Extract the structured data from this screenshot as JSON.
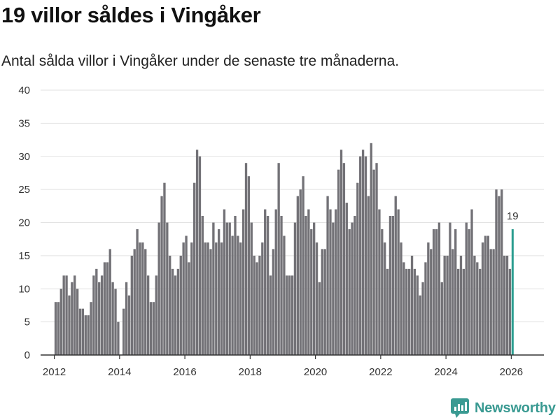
{
  "header": {
    "title": "19 villor såldes i Vingåker",
    "subtitle": "Antal sålda villor i Vingåker under de senaste tre månaderna."
  },
  "brand": {
    "name": "Newsworthy"
  },
  "colors": {
    "bar": "#737277",
    "highlight": "#2a9d8f",
    "grid": "#e2e2e2",
    "axis": "#333333"
  },
  "chart_data": {
    "type": "bar",
    "title": "19 villor såldes i Vingåker",
    "subtitle": "Antal sålda villor i Vingåker under de senaste tre månaderna.",
    "xlabel": "",
    "ylabel": "",
    "ylim": [
      0,
      40
    ],
    "yticks": [
      0,
      5,
      10,
      15,
      20,
      25,
      30,
      35,
      40
    ],
    "xlim": [
      2011.58,
      2027.0
    ],
    "xticks": [
      2012,
      2014,
      2016,
      2018,
      2020,
      2022,
      2024,
      2026
    ],
    "grid": true,
    "start": [
      2012,
      1
    ],
    "values": [
      8,
      8,
      10,
      12,
      12,
      9,
      11,
      12,
      10,
      7,
      7,
      6,
      6,
      8,
      12,
      13,
      11,
      12,
      14,
      14,
      16,
      11,
      10,
      5,
      0,
      7,
      11,
      9,
      15,
      16,
      19,
      17,
      17,
      16,
      12,
      8,
      8,
      12,
      20,
      24,
      26,
      20,
      15,
      13,
      12,
      13,
      15,
      17,
      18,
      14,
      17,
      26,
      31,
      30,
      21,
      17,
      17,
      16,
      20,
      17,
      19,
      17,
      22,
      20,
      20,
      18,
      21,
      18,
      17,
      22,
      29,
      27,
      20,
      15,
      14,
      15,
      17,
      22,
      21,
      12,
      16,
      22,
      29,
      21,
      18,
      12,
      12,
      12,
      20,
      24,
      25,
      27,
      21,
      22,
      19,
      20,
      17,
      11,
      16,
      16,
      24,
      22,
      20,
      22,
      28,
      31,
      29,
      23,
      19,
      20,
      21,
      26,
      30,
      31,
      30,
      24,
      32,
      28,
      29,
      22,
      19,
      17,
      13,
      21,
      21,
      24,
      22,
      17,
      14,
      13,
      13,
      15,
      13,
      12,
      9,
      11,
      14,
      17,
      16,
      19,
      19,
      20,
      11,
      15,
      15,
      20,
      16,
      19,
      13,
      15,
      13,
      20,
      19,
      22,
      15,
      14,
      13,
      17,
      18,
      18,
      16,
      16,
      25,
      24,
      25,
      15,
      15,
      13,
      19
    ],
    "highlight_label": "19"
  }
}
